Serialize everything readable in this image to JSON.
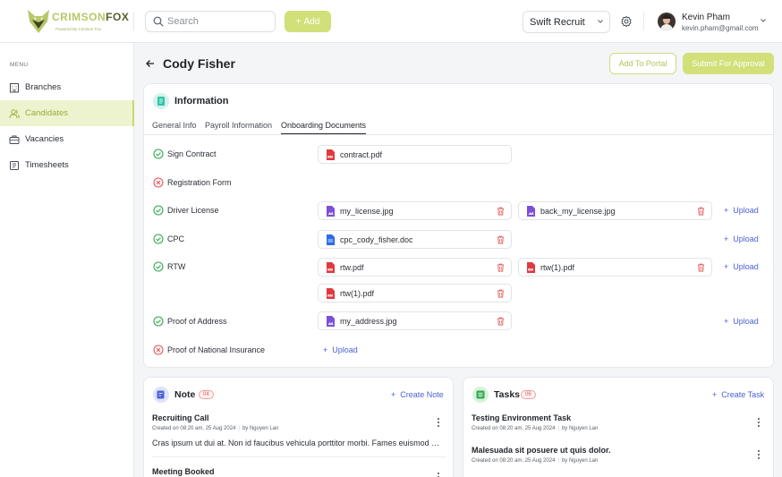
{
  "header": {
    "logo": {
      "brand_a": "CRIMSON",
      "brand_b": "FOX",
      "tagline": "Powered By Crimson Fox"
    },
    "search_placeholder": "Search",
    "add_label": "Add",
    "company": "Swift Recruit",
    "user": {
      "name": "Kevin Pham",
      "email": "kevin.pham@gmail.com"
    }
  },
  "sidebar": {
    "menu_label": "MENU",
    "items": [
      {
        "label": "Branches",
        "icon": "building-icon",
        "active": false
      },
      {
        "label": "Candidates",
        "icon": "users-icon",
        "active": true
      },
      {
        "label": "Vacancies",
        "icon": "briefcase-icon",
        "active": false
      },
      {
        "label": "Timesheets",
        "icon": "timesheet-icon",
        "active": false
      }
    ]
  },
  "page": {
    "title": "Cody Fisher",
    "add_to_portal_label": "Add To Portal",
    "submit_label": "Submit For Approval"
  },
  "information": {
    "title": "Information",
    "tabs": [
      "General Info",
      "Payroll Information",
      "Onboarding Documents"
    ],
    "active_tab": "Onboarding Documents",
    "upload_label": "Upload",
    "documents": [
      {
        "label": "Sign Contract",
        "status": "done",
        "files": [
          {
            "name": "contract.pdf",
            "type": "pdf"
          }
        ]
      },
      {
        "label": "Registration Form",
        "status": "missing",
        "files": []
      },
      {
        "label": "Driver License",
        "status": "done",
        "files": [
          {
            "name": "my_license.jpg",
            "type": "image"
          },
          {
            "name": "back_my_license.jpg",
            "type": "image"
          }
        ]
      },
      {
        "label": "CPC",
        "status": "done",
        "files": [
          {
            "name": "cpc_cody_fisher.doc",
            "type": "doc"
          }
        ]
      },
      {
        "label": "RTW",
        "status": "done",
        "files": [
          {
            "name": "rtw.pdf",
            "type": "pdf"
          },
          {
            "name": "rtw(1).pdf",
            "type": "pdf"
          },
          {
            "name": "rtw(1).pdf",
            "type": "pdf"
          }
        ]
      },
      {
        "label": "Proof of Address",
        "status": "done",
        "files": [
          {
            "name": "my_address.jpg",
            "type": "image"
          }
        ]
      },
      {
        "label": "Proof of National Insurance",
        "status": "missing",
        "files": []
      }
    ]
  },
  "note": {
    "title": "Note",
    "count": "04",
    "create_label": "Create Note",
    "entries": [
      {
        "title": "Recruiting Call",
        "created": "Created on 08:20 am, 25 Aug 2024",
        "by": "by Nguyen Lan",
        "body": "Cras ipsum ut dui at. Non id faucibus vehicula porttitor morbi. Fames euismod gravida"
      },
      {
        "title": "Meeting Booked"
      }
    ]
  },
  "tasks": {
    "title": "Tasks",
    "count": "06",
    "create_label": "Create Task",
    "entries": [
      {
        "title": "Testing Environment Task",
        "created": "Created on 08:20 am, 25 Aug 2024",
        "by": "by Nguyen Lan"
      },
      {
        "title": "Malesuada sit posuere ut quis dolor.",
        "created": "Created on 08:20 am, 25 Aug 2024",
        "by": "by Nguyen Lan"
      }
    ]
  },
  "colors": {
    "accent": "#d2e07a",
    "accent_text": "#9aad3b",
    "link": "#4b62d6",
    "success": "#2fa84f",
    "danger": "#e25757"
  }
}
